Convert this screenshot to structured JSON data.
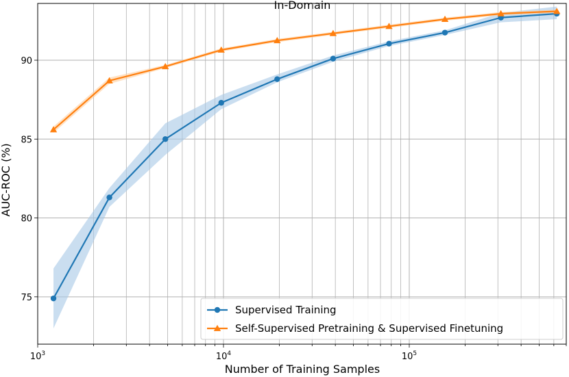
{
  "chart_data": {
    "type": "line",
    "title": "In-Domain",
    "xlabel": "Number of Training Samples",
    "ylabel": "AUC-ROC (%)",
    "xscale": "log",
    "xlim": [
      1000,
      700000
    ],
    "ylim": [
      72,
      93.6
    ],
    "grid": "on (major and minor)",
    "x_ticks": [
      1000,
      10000,
      100000
    ],
    "x_tick_labels": [
      {
        "base": "10",
        "exp": "3"
      },
      {
        "base": "10",
        "exp": "4"
      },
      {
        "base": "10",
        "exp": "5"
      }
    ],
    "y_ticks": [
      75,
      80,
      85,
      90
    ],
    "y_tick_labels": [
      "75",
      "80",
      "85",
      "90"
    ],
    "legend_position": "bottom-right",
    "series": [
      {
        "name": "Supervised Training",
        "color": "#1f77b4",
        "band_color": "#a6c8e6",
        "marker": "circle",
        "x": [
          1216,
          2432,
          4864,
          9728,
          19456,
          38912,
          77824,
          155648,
          311296,
          622592
        ],
        "y": [
          74.9,
          81.3,
          85.0,
          87.3,
          88.8,
          90.1,
          91.05,
          91.75,
          92.7,
          92.95
        ],
        "y_low": [
          73.0,
          80.7,
          84.0,
          86.9,
          88.6,
          89.9,
          90.9,
          91.6,
          92.4,
          92.6
        ],
        "y_high": [
          76.8,
          81.9,
          86.0,
          87.8,
          89.1,
          90.3,
          91.2,
          91.9,
          93.0,
          93.4
        ]
      },
      {
        "name": "Self-Supervised Pretraining & Supervised Finetuning",
        "color": "#ff7f0e",
        "band_color": "#ffcf9f",
        "marker": "triangle",
        "x": [
          1216,
          2432,
          4864,
          9728,
          19456,
          38912,
          77824,
          155648,
          311296,
          622592
        ],
        "y": [
          85.6,
          88.7,
          89.6,
          90.65,
          91.25,
          91.7,
          92.15,
          92.6,
          92.95,
          93.1
        ],
        "y_low": [
          85.4,
          88.5,
          89.5,
          90.55,
          91.15,
          91.6,
          92.05,
          92.5,
          92.85,
          93.0
        ],
        "y_high": [
          85.8,
          88.9,
          89.7,
          90.75,
          91.35,
          91.8,
          92.25,
          92.7,
          93.05,
          93.2
        ]
      }
    ]
  }
}
